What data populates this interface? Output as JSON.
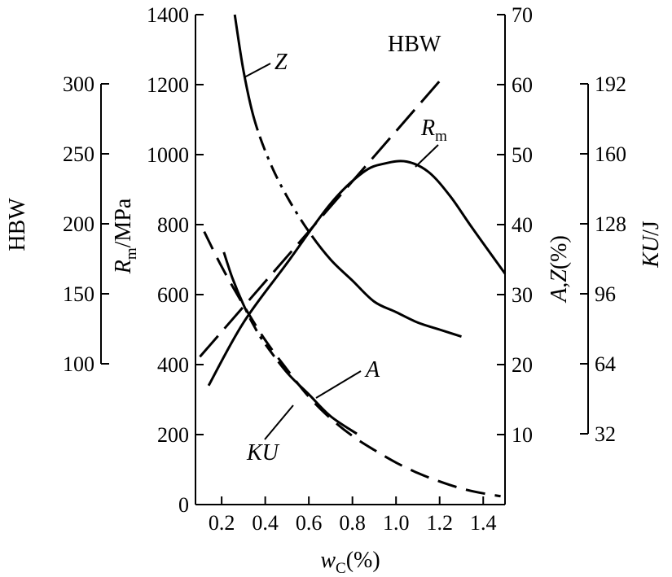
{
  "chart_data": {
    "type": "line",
    "title": "",
    "xlabel": {
      "base": "w",
      "sub": "C",
      "suffix": "(%)"
    },
    "xlim": [
      0.08,
      1.5
    ],
    "xticks": [
      "0.2",
      "0.4",
      "0.6",
      "0.8",
      "1.0",
      "1.2",
      "1.4"
    ],
    "axes": {
      "rm": {
        "label": {
          "base": "R",
          "sub": "m",
          "suffix": "/MPa"
        },
        "lim": [
          0,
          1400
        ],
        "ticks": [
          "0",
          "200",
          "400",
          "600",
          "800",
          "1000",
          "1200",
          "1400"
        ]
      },
      "hbw": {
        "label": "HBW",
        "lim": [
          100,
          300
        ],
        "ticks": [
          "100",
          "150",
          "200",
          "250",
          "300"
        ]
      },
      "az": {
        "label": {
          "a": "A",
          "sep": ",",
          "z": "Z",
          "suffix": "(%)"
        },
        "lim": [
          0,
          70
        ],
        "ticks": [
          "10",
          "20",
          "30",
          "40",
          "50",
          "60",
          "70"
        ]
      },
      "ku": {
        "label": {
          "base": "KU",
          "suffix": "/J"
        },
        "lim": [
          32,
          192
        ],
        "ticks": [
          "32",
          "64",
          "96",
          "128",
          "160",
          "192"
        ]
      }
    },
    "series": [
      {
        "name": "HBW",
        "axis": "hbw",
        "dash": "long-dash",
        "x": [
          0.1,
          1.2
        ],
        "y": [
          105,
          302
        ]
      },
      {
        "name": "Rm",
        "label": {
          "base": "R",
          "sub": "m"
        },
        "axis": "rm",
        "dash": "solid",
        "x": [
          0.14,
          0.3,
          0.5,
          0.7,
          0.85,
          0.95,
          1.05,
          1.15,
          1.25,
          1.35,
          1.5
        ],
        "y": [
          340,
          520,
          690,
          860,
          950,
          975,
          980,
          950,
          880,
          790,
          660
        ]
      },
      {
        "name": "Z",
        "axis": "az",
        "dash": "solid-dashdot-solid",
        "x": [
          0.26,
          0.3,
          0.35,
          0.42,
          0.5,
          0.6,
          0.7,
          0.8,
          0.9,
          1.0,
          1.1,
          1.2,
          1.3
        ],
        "y": [
          70,
          62,
          55,
          49,
          44,
          39,
          35,
          32,
          29,
          27.5,
          26,
          25,
          24
        ]
      },
      {
        "name": "A",
        "axis": "az",
        "dash": "dash",
        "x": [
          0.12,
          0.2,
          0.3,
          0.4,
          0.5,
          0.6,
          0.7,
          0.8,
          0.9,
          1.0,
          1.1,
          1.2,
          1.3,
          1.4,
          1.48
        ],
        "y": [
          39,
          34,
          28.5,
          23.5,
          19.3,
          15.4,
          12.3,
          9.8,
          7.8,
          6.0,
          4.5,
          3.3,
          2.3,
          1.6,
          1.2
        ]
      },
      {
        "name": "KU",
        "axis": "ku",
        "dash": "solid-dashdot-solid",
        "x": [
          0.21,
          0.25,
          0.3,
          0.35,
          0.4,
          0.5,
          0.6,
          0.7,
          0.82
        ],
        "y": [
          115,
          103,
          91,
          81,
          73,
          60,
          50,
          40,
          32
        ]
      }
    ],
    "annotations": [
      {
        "text": "HBW",
        "series": "HBW"
      },
      {
        "text": {
          "base": "R",
          "sub": "m"
        },
        "series": "Rm"
      },
      {
        "text": "Z",
        "series": "Z"
      },
      {
        "text": "A",
        "series": "A"
      },
      {
        "text": "KU",
        "series": "KU"
      }
    ],
    "grid": false
  }
}
